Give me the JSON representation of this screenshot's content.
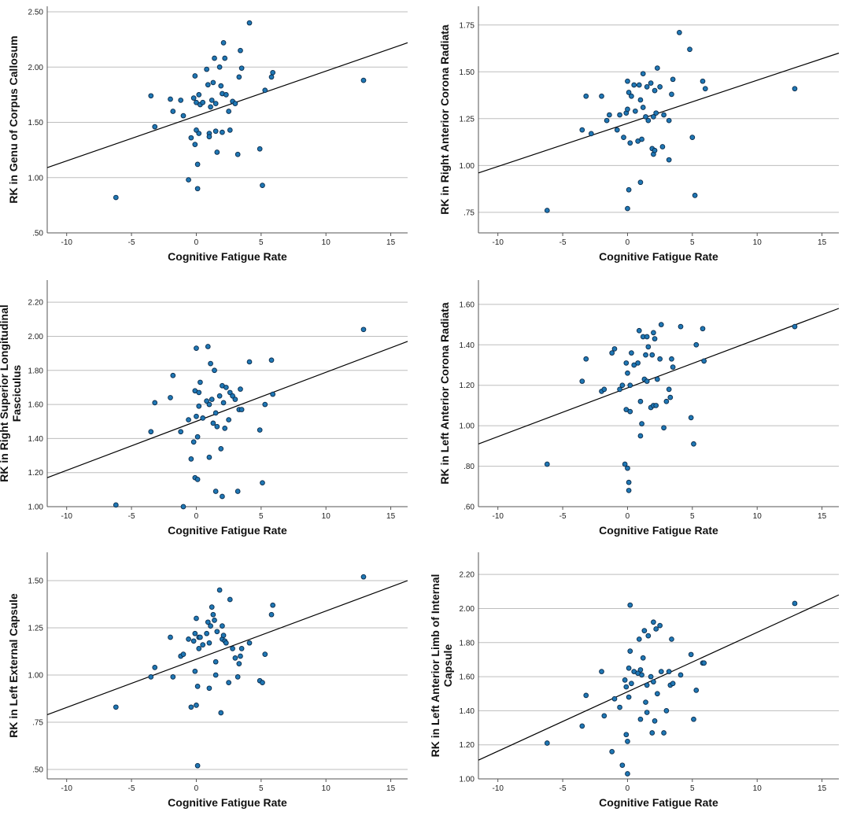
{
  "figure": {
    "colors": {
      "point_fill": "#1f77b4",
      "point_stroke": "#0a2a4a",
      "grid": "#bdbdbd",
      "axis": "#555555",
      "fit_line": "#000000"
    }
  },
  "chart_data": [
    {
      "type": "scatter",
      "title": "",
      "xlabel": "Cognitive Fatigue Rate",
      "ylabel": "RK in Genu of Corpus Callosum",
      "xlim": [
        -11.5,
        16.3
      ],
      "ylim": [
        0.5,
        2.55
      ],
      "xticks": [
        -10,
        -5,
        0,
        5,
        10,
        15
      ],
      "xtick_labels": [
        "-10",
        "-5",
        "0",
        "5",
        "10",
        "15"
      ],
      "yticks": [
        0.5,
        1.0,
        1.5,
        2.0,
        2.5
      ],
      "ytick_labels": [
        ".50",
        "1.00",
        "1.50",
        "2.00",
        "2.50"
      ],
      "grid": "horizontal",
      "fit_line": {
        "x": [
          -11.5,
          16.3
        ],
        "y": [
          1.09,
          2.22
        ]
      },
      "x": [
        -6.2,
        -3.5,
        -3.2,
        -2.0,
        -1.8,
        -1.2,
        -1.0,
        -0.6,
        -0.4,
        -0.2,
        -0.1,
        -0.1,
        0.0,
        0.0,
        0.1,
        0.1,
        0.2,
        0.2,
        0.3,
        0.5,
        0.8,
        0.9,
        1.0,
        1.0,
        1.1,
        1.2,
        1.3,
        1.4,
        1.5,
        1.5,
        1.6,
        1.8,
        1.9,
        2.0,
        2.0,
        2.1,
        2.2,
        2.3,
        2.5,
        2.6,
        2.8,
        3.0,
        3.2,
        3.3,
        3.4,
        3.5,
        4.1,
        4.9,
        5.1,
        5.3,
        5.8,
        5.9,
        12.9
      ],
      "y": [
        0.82,
        1.74,
        1.46,
        1.71,
        1.6,
        1.7,
        1.56,
        0.98,
        1.36,
        1.72,
        1.92,
        1.3,
        1.68,
        1.43,
        1.12,
        0.9,
        1.4,
        1.75,
        1.66,
        1.68,
        1.98,
        1.84,
        1.4,
        1.37,
        1.64,
        1.7,
        1.86,
        2.08,
        1.67,
        1.42,
        1.23,
        2.0,
        1.83,
        1.76,
        1.41,
        2.22,
        2.08,
        1.75,
        1.6,
        1.43,
        1.69,
        1.67,
        1.21,
        1.91,
        2.15,
        1.99,
        2.4,
        1.26,
        0.93,
        1.79,
        1.91,
        1.95,
        1.88
      ]
    },
    {
      "type": "scatter",
      "title": "",
      "xlabel": "Cognitive Fatigue Rate",
      "ylabel": "RK in Right Anterior Corona Radiata",
      "xlim": [
        -11.5,
        16.3
      ],
      "ylim": [
        0.64,
        1.85
      ],
      "xticks": [
        -10,
        -5,
        0,
        5,
        10,
        15
      ],
      "xtick_labels": [
        "-10",
        "-5",
        "0",
        "5",
        "10",
        "15"
      ],
      "yticks": [
        0.75,
        1.0,
        1.25,
        1.5,
        1.75
      ],
      "ytick_labels": [
        ".75",
        "1.00",
        "1.25",
        "1.50",
        "1.75"
      ],
      "grid": "horizontal",
      "fit_line": {
        "x": [
          -11.5,
          16.3
        ],
        "y": [
          0.96,
          1.6
        ]
      },
      "x": [
        -6.2,
        -3.5,
        -3.2,
        -2.8,
        -2.0,
        -1.6,
        -1.4,
        -0.8,
        -0.6,
        -0.3,
        -0.1,
        0.0,
        0.0,
        0.0,
        0.1,
        0.1,
        0.2,
        0.3,
        0.5,
        0.6,
        0.8,
        0.9,
        1.0,
        1.0,
        1.1,
        1.2,
        1.2,
        1.4,
        1.5,
        1.6,
        1.8,
        1.9,
        2.0,
        2.0,
        2.1,
        2.1,
        2.2,
        2.3,
        2.5,
        2.7,
        2.8,
        3.2,
        3.2,
        3.4,
        3.5,
        4.0,
        4.8,
        5.0,
        5.2,
        5.8,
        6.0,
        12.9
      ],
      "y": [
        0.76,
        1.19,
        1.37,
        1.17,
        1.37,
        1.24,
        1.27,
        1.19,
        1.27,
        1.15,
        1.28,
        0.77,
        1.3,
        1.45,
        1.39,
        0.87,
        1.12,
        1.37,
        1.43,
        1.29,
        1.13,
        1.43,
        1.35,
        0.91,
        1.14,
        1.49,
        1.31,
        1.26,
        1.42,
        1.24,
        1.44,
        1.09,
        1.26,
        1.06,
        1.4,
        1.08,
        1.28,
        1.52,
        1.42,
        1.1,
        1.27,
        1.24,
        1.03,
        1.38,
        1.46,
        1.71,
        1.62,
        1.15,
        0.84,
        1.45,
        1.41,
        1.41
      ]
    },
    {
      "type": "scatter",
      "title": "",
      "xlabel": "Cognitive Fatigue Rate",
      "ylabel": "RK in Right Superior Longitudinal Fasciculus",
      "xlim": [
        -11.5,
        16.3
      ],
      "ylim": [
        1.0,
        2.33
      ],
      "xticks": [
        -10,
        -5,
        0,
        5,
        10,
        15
      ],
      "xtick_labels": [
        "-10",
        "-5",
        "0",
        "5",
        "10",
        "15"
      ],
      "yticks": [
        1.0,
        1.2,
        1.4,
        1.6,
        1.8,
        2.0,
        2.2
      ],
      "ytick_labels": [
        "1.00",
        "1.20",
        "1.40",
        "1.60",
        "1.80",
        "2.00",
        "2.20"
      ],
      "grid": "horizontal",
      "fit_line": {
        "x": [
          -11.5,
          16.3
        ],
        "y": [
          1.17,
          1.97
        ]
      },
      "x": [
        -6.2,
        -3.5,
        -3.2,
        -2.0,
        -1.8,
        -1.2,
        -1.0,
        -0.6,
        -0.4,
        -0.2,
        -0.1,
        -0.1,
        0.0,
        0.0,
        0.1,
        0.1,
        0.2,
        0.2,
        0.3,
        0.5,
        0.8,
        0.9,
        1.0,
        1.0,
        1.1,
        1.2,
        1.3,
        1.4,
        1.5,
        1.5,
        1.6,
        1.8,
        1.9,
        2.0,
        2.0,
        2.1,
        2.2,
        2.3,
        2.5,
        2.6,
        2.8,
        3.0,
        3.2,
        3.3,
        3.4,
        3.5,
        4.1,
        4.9,
        5.1,
        5.3,
        5.8,
        5.9,
        12.9
      ],
      "y": [
        1.01,
        1.44,
        1.61,
        1.64,
        1.77,
        1.44,
        1.0,
        1.51,
        1.28,
        1.38,
        1.17,
        1.68,
        1.93,
        1.53,
        1.16,
        1.41,
        1.59,
        1.67,
        1.73,
        1.52,
        1.62,
        1.94,
        1.29,
        1.6,
        1.84,
        1.63,
        1.49,
        1.8,
        1.55,
        1.09,
        1.47,
        1.65,
        1.34,
        1.06,
        1.71,
        1.61,
        1.46,
        1.7,
        1.51,
        1.67,
        1.65,
        1.63,
        1.09,
        1.57,
        1.69,
        1.57,
        1.85,
        1.45,
        1.14,
        1.6,
        1.86,
        1.66,
        2.04
      ]
    },
    {
      "type": "scatter",
      "title": "",
      "xlabel": "Cognitive Fatigue Rate",
      "ylabel": "RK in Left Anterior Corona Radiata",
      "xlim": [
        -11.5,
        16.3
      ],
      "ylim": [
        0.6,
        1.72
      ],
      "xticks": [
        -10,
        -5,
        0,
        5,
        10,
        15
      ],
      "xtick_labels": [
        "-10",
        "-5",
        "0",
        "5",
        "10",
        "15"
      ],
      "yticks": [
        0.6,
        0.8,
        1.0,
        1.2,
        1.4,
        1.6
      ],
      "ytick_labels": [
        ".60",
        ".80",
        "1.00",
        "1.20",
        "1.40",
        "1.60"
      ],
      "grid": "horizontal",
      "fit_line": {
        "x": [
          -11.5,
          16.3
        ],
        "y": [
          0.91,
          1.58
        ]
      },
      "x": [
        -6.2,
        -3.5,
        -3.2,
        -2.0,
        -1.8,
        -1.2,
        -1.0,
        -0.6,
        -0.4,
        -0.2,
        -0.1,
        -0.1,
        0.0,
        0.0,
        0.1,
        0.1,
        0.2,
        0.2,
        0.3,
        0.5,
        0.8,
        0.9,
        1.0,
        1.0,
        1.1,
        1.2,
        1.3,
        1.4,
        1.5,
        1.5,
        1.6,
        1.8,
        1.9,
        2.0,
        2.0,
        2.1,
        2.2,
        2.3,
        2.5,
        2.6,
        2.8,
        3.0,
        3.2,
        3.3,
        3.4,
        3.5,
        4.1,
        4.9,
        5.1,
        5.3,
        5.8,
        5.9,
        12.9
      ],
      "y": [
        0.81,
        1.22,
        1.33,
        1.17,
        1.18,
        1.36,
        1.38,
        1.18,
        1.2,
        0.81,
        1.08,
        1.31,
        1.26,
        0.79,
        0.72,
        0.68,
        1.07,
        1.2,
        1.36,
        1.3,
        1.31,
        1.47,
        0.95,
        1.12,
        1.01,
        1.44,
        1.23,
        1.35,
        1.44,
        1.22,
        1.39,
        1.09,
        1.35,
        1.1,
        1.46,
        1.43,
        1.1,
        1.23,
        1.33,
        1.5,
        0.99,
        1.12,
        1.18,
        1.14,
        1.33,
        1.29,
        1.49,
        1.04,
        0.91,
        1.4,
        1.48,
        1.32,
        1.49
      ]
    },
    {
      "type": "scatter",
      "title": "",
      "xlabel": "Cognitive Fatigue Rate",
      "ylabel": "RK in Left External Capsule",
      "xlim": [
        -11.5,
        16.3
      ],
      "ylim": [
        0.45,
        1.65
      ],
      "xticks": [
        -10,
        -5,
        0,
        5,
        10,
        15
      ],
      "xtick_labels": [
        "-10",
        "-5",
        "0",
        "5",
        "10",
        "15"
      ],
      "yticks": [
        0.5,
        0.75,
        1.0,
        1.25,
        1.5
      ],
      "ytick_labels": [
        ".50",
        ".75",
        "1.00",
        "1.25",
        "1.50"
      ],
      "grid": "horizontal",
      "fit_line": {
        "x": [
          -11.5,
          16.3
        ],
        "y": [
          0.79,
          1.5
        ]
      },
      "x": [
        -6.2,
        -3.5,
        -3.2,
        -2.0,
        -1.8,
        -1.2,
        -1.0,
        -0.6,
        -0.4,
        -0.2,
        -0.1,
        -0.1,
        0.0,
        0.0,
        0.1,
        0.1,
        0.2,
        0.2,
        0.3,
        0.5,
        0.8,
        0.9,
        1.0,
        1.0,
        1.1,
        1.2,
        1.3,
        1.4,
        1.5,
        1.5,
        1.6,
        1.8,
        1.9,
        2.0,
        2.0,
        2.1,
        2.2,
        2.3,
        2.5,
        2.6,
        2.8,
        3.0,
        3.2,
        3.3,
        3.4,
        3.5,
        4.1,
        4.9,
        5.1,
        5.3,
        5.8,
        5.9,
        12.9
      ],
      "y": [
        0.83,
        0.99,
        1.04,
        1.2,
        0.99,
        1.1,
        1.11,
        1.19,
        0.83,
        1.18,
        1.22,
        1.02,
        1.3,
        0.84,
        0.52,
        0.94,
        1.14,
        1.2,
        1.2,
        1.16,
        1.22,
        1.28,
        1.17,
        0.93,
        1.26,
        1.36,
        1.32,
        1.29,
        1.0,
        1.07,
        1.23,
        1.45,
        0.8,
        1.19,
        1.26,
        1.21,
        1.18,
        1.17,
        0.96,
        1.4,
        1.14,
        1.09,
        0.99,
        1.06,
        1.1,
        1.14,
        1.17,
        0.97,
        0.96,
        1.11,
        1.32,
        1.37,
        1.52
      ]
    },
    {
      "type": "scatter",
      "title": "",
      "xlabel": "Cognitive Fatigue Rate",
      "ylabel": "RK in Left Anterior Limb of Internal Capsule",
      "xlim": [
        -11.5,
        16.3
      ],
      "ylim": [
        1.0,
        2.33
      ],
      "xticks": [
        -10,
        -5,
        0,
        5,
        10,
        15
      ],
      "xtick_labels": [
        "-10",
        "-5",
        "0",
        "5",
        "10",
        "15"
      ],
      "yticks": [
        1.0,
        1.2,
        1.4,
        1.6,
        1.8,
        2.0,
        2.2
      ],
      "ytick_labels": [
        "1.00",
        "1.20",
        "1.40",
        "1.60",
        "1.80",
        "2.00",
        "2.20"
      ],
      "grid": "horizontal",
      "fit_line": {
        "x": [
          -11.5,
          16.3
        ],
        "y": [
          1.11,
          2.08
        ]
      },
      "x": [
        -6.2,
        -3.5,
        -3.2,
        -2.0,
        -1.8,
        -1.2,
        -1.0,
        -0.6,
        -0.4,
        -0.2,
        -0.1,
        -0.1,
        0.0,
        0.0,
        0.1,
        0.1,
        0.2,
        0.2,
        0.3,
        0.5,
        0.8,
        0.9,
        1.0,
        1.0,
        1.1,
        1.2,
        1.3,
        1.4,
        1.5,
        1.5,
        1.6,
        1.8,
        1.9,
        2.0,
        2.0,
        2.1,
        2.2,
        2.3,
        2.5,
        2.6,
        2.8,
        3.0,
        3.2,
        3.3,
        3.4,
        3.5,
        4.1,
        4.9,
        5.1,
        5.3,
        5.8,
        5.9,
        12.9
      ],
      "y": [
        1.21,
        1.31,
        1.49,
        1.63,
        1.37,
        1.16,
        1.47,
        1.42,
        1.08,
        1.58,
        1.54,
        1.26,
        1.22,
        1.03,
        1.65,
        1.48,
        2.02,
        1.75,
        1.56,
        1.63,
        1.62,
        1.82,
        1.35,
        1.64,
        1.61,
        1.71,
        1.87,
        1.45,
        1.55,
        1.39,
        1.84,
        1.6,
        1.27,
        1.92,
        1.57,
        1.34,
        1.88,
        1.5,
        1.9,
        1.63,
        1.27,
        1.4,
        1.63,
        1.55,
        1.82,
        1.56,
        1.61,
        1.73,
        1.35,
        1.52,
        1.68,
        1.68,
        2.03
      ]
    }
  ]
}
